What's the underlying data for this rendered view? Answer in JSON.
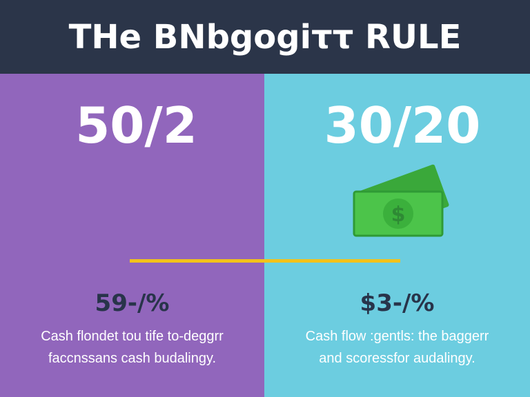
{
  "header": {
    "title": "THe BNbgogiττ RULE"
  },
  "left": {
    "big": "50/2",
    "percent": "59-/%",
    "desc_line1": "Cash flondet tou tife to-deggrr",
    "desc_line2": "faccnssans cash budalingy."
  },
  "right": {
    "big": "30/20",
    "percent": "$3-/%",
    "desc_line1": "Cash flow :gentls: the baggerr",
    "desc_line2": "and scoressfor audalingy.",
    "icon": "money-bill-icon"
  },
  "colors": {
    "header": "#2b3549",
    "left": "#9166bc",
    "right": "#6ccde0",
    "divider": "#f2c21b",
    "money": "#4cc44a"
  }
}
